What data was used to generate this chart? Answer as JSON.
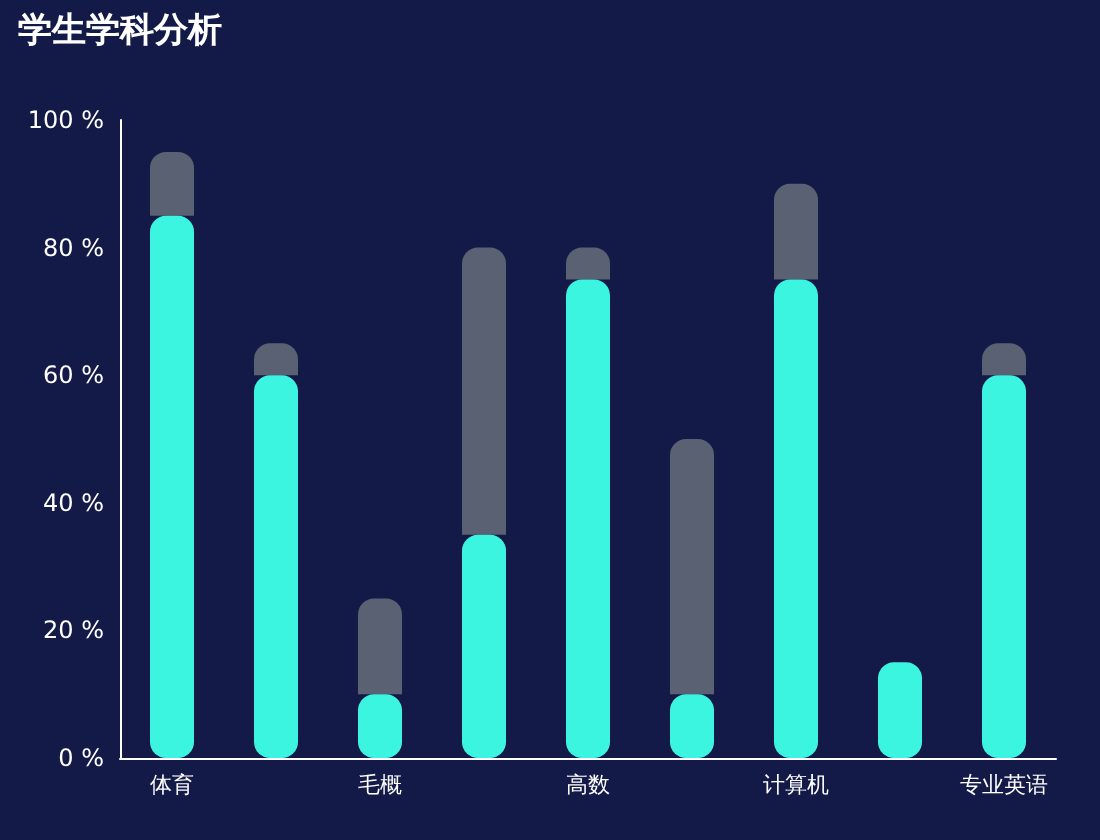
{
  "chart_data": {
    "type": "bar",
    "title": "学生学科分析",
    "categories": [
      "体育",
      null,
      "毛概",
      null,
      "高数",
      null,
      "计算机",
      null,
      "专业英语"
    ],
    "series": [
      {
        "color": "#3cf5e0",
        "values": [
          85,
          60,
          10,
          35,
          75,
          10,
          75,
          15,
          60
        ]
      },
      {
        "color": "#5a6172",
        "values": [
          10,
          5,
          15,
          45,
          5,
          40,
          15,
          null,
          5
        ]
      }
    ],
    "stacked": true,
    "ylim": [
      0,
      100
    ],
    "yticks": [
      {
        "value": 0,
        "label": "0 %"
      },
      {
        "value": 20,
        "label": "20 %"
      },
      {
        "value": 40,
        "label": "40 %"
      },
      {
        "value": 60,
        "label": "60 %"
      },
      {
        "value": 80,
        "label": "80 %"
      },
      {
        "value": 100,
        "label": "100 %"
      }
    ],
    "grid": false
  }
}
